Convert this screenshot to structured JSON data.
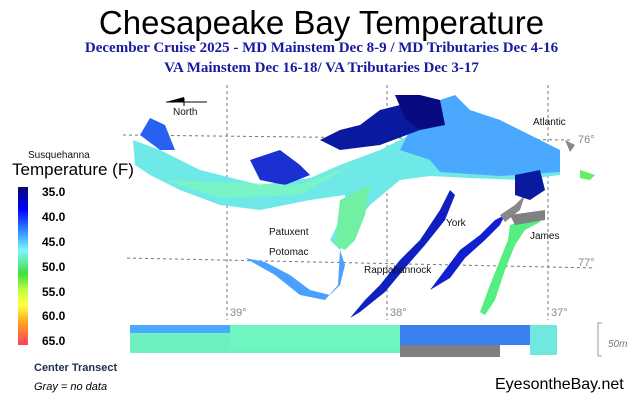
{
  "title": "Chesapeake Bay Temperature",
  "subtitle_line1": "December Cruise 2025 - MD Mainstem Dec 8-9 / MD Tributaries Dec 4-16",
  "subtitle_line2": "VA Mainstem Dec 16-18/  VA Tributaries Dec 3-17",
  "legend": {
    "title": "Temperature (F)",
    "ticks": [
      "35.0",
      "40.0",
      "45.0",
      "50.0",
      "55.0",
      "60.0",
      "65.0"
    ]
  },
  "map": {
    "north_label": "North",
    "places": {
      "susquehanna": "Susquehanna",
      "patuxent": "Patuxent",
      "potomac": "Potomac",
      "rappahannock": "Rappahannock",
      "york": "York",
      "james": "James",
      "atlantic": "Atlantic"
    },
    "latitudes": [
      "39°",
      "38°",
      "37°"
    ],
    "longitudes": [
      "76°",
      "77°"
    ]
  },
  "transect": {
    "label": "Center Transect",
    "scale": "50m"
  },
  "gray_note": "Gray = no data",
  "brand": "EyesontheBay.net"
}
